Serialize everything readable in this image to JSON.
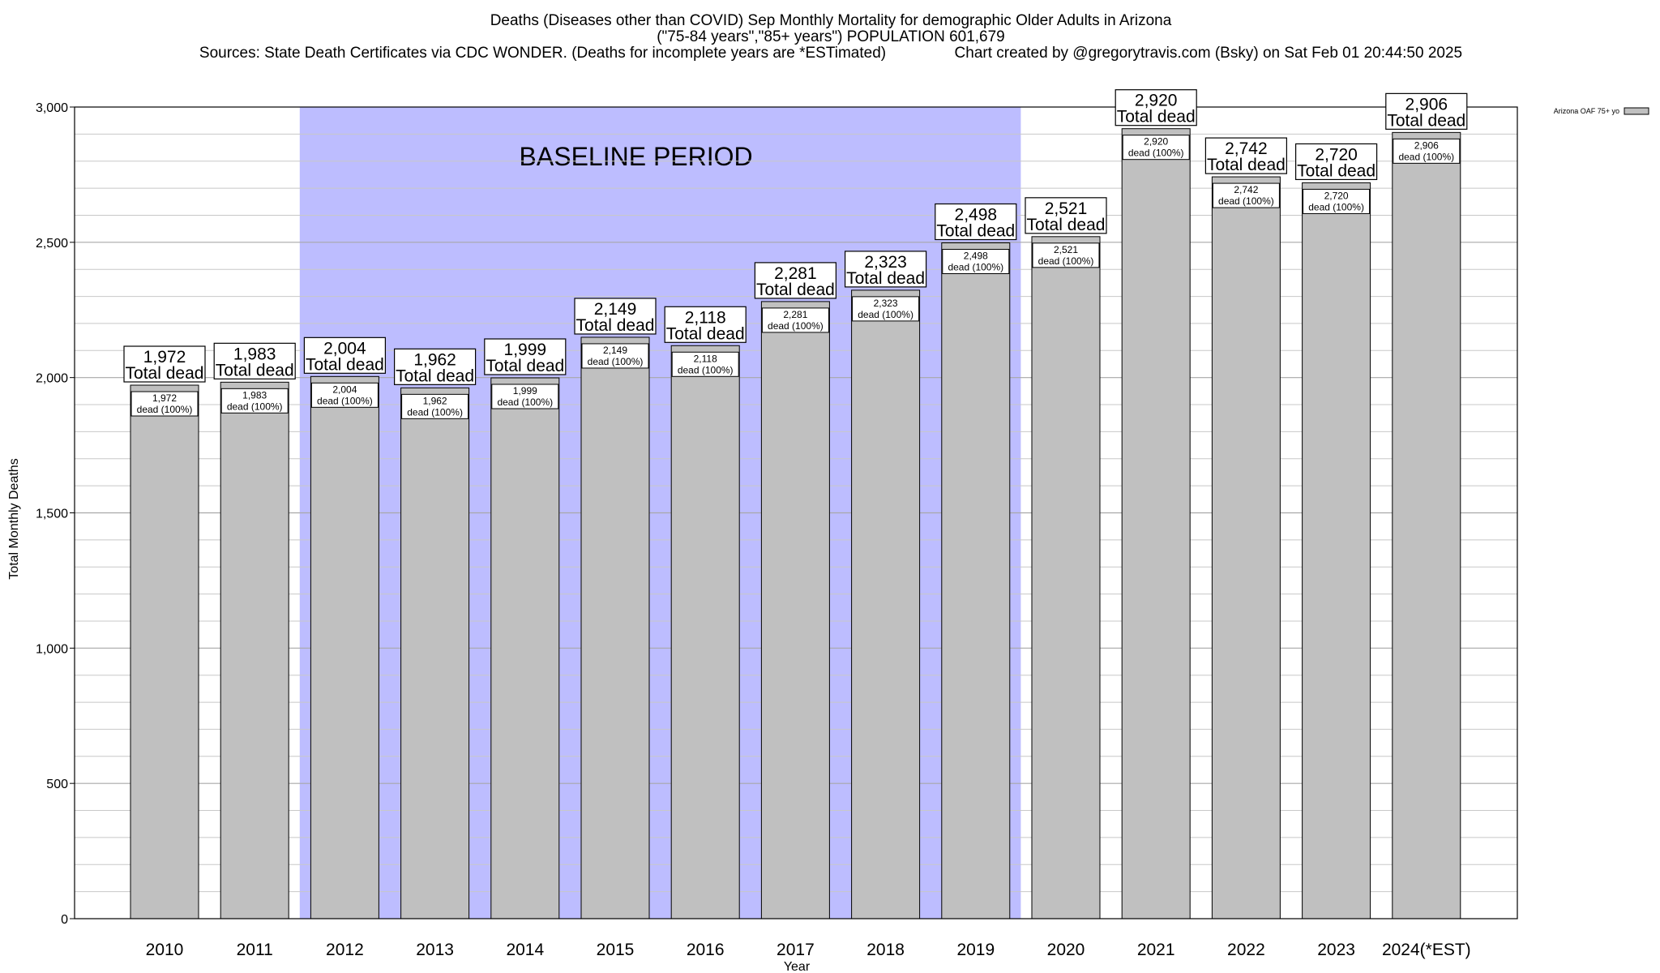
{
  "chart_data": {
    "type": "bar",
    "title_lines": [
      "Deaths (Diseases other than COVID) Sep Monthly Mortality for demographic Older Adults in Arizona",
      "(\"75-84 years\",\"85+ years\") POPULATION 601,679",
      "Sources: State Death Certificates via CDC WONDER. (Deaths for incomplete years are *ESTimated)                Chart created by @gregorytravis.com (Bsky) on Sat Feb 01 20:44:50 2025"
    ],
    "xlabel": "Year",
    "ylabel": "Total Monthly Deaths",
    "ylim": [
      0,
      3000
    ],
    "yticks": [
      0,
      500,
      1000,
      1500,
      2000,
      2500,
      3000
    ],
    "ytick_labels": [
      "0",
      "500",
      "1,000",
      "1,500",
      "2,000",
      "2,500",
      "3,000"
    ],
    "categories": [
      "2010",
      "2011",
      "2012",
      "2013",
      "2014",
      "2015",
      "2016",
      "2017",
      "2018",
      "2019",
      "2020",
      "2021",
      "2022",
      "2023",
      "2024(*EST)"
    ],
    "series": [
      {
        "name": "Arizona OAF 75+ yo",
        "values": [
          1972,
          1983,
          2004,
          1962,
          1999,
          2149,
          2118,
          2281,
          2323,
          2498,
          2521,
          2920,
          2742,
          2720,
          2906
        ],
        "color": "#c0c0c0"
      }
    ],
    "total_labels": [
      "1,972",
      "1,983",
      "2,004",
      "1,962",
      "1,999",
      "2,149",
      "2,118",
      "2,281",
      "2,323",
      "2,498",
      "2,521",
      "2,920",
      "2,742",
      "2,720",
      "2,906"
    ],
    "total_label_suffix": "Total dead",
    "bar_labels": [
      "1,972",
      "1,983",
      "2,004",
      "1,962",
      "1,999",
      "2,149",
      "2,118",
      "2,281",
      "2,323",
      "2,498",
      "2,521",
      "2,920",
      "2,742",
      "2,720",
      "2,906"
    ],
    "bar_label_suffix": "dead (100%)",
    "baseline_period": {
      "label": "BASELINE PERIOD",
      "start_category": "2012",
      "end_category": "2019",
      "color": "#bdbdff"
    },
    "legend_placement": "top-right",
    "grid": true,
    "minor_grid_step": 100
  }
}
